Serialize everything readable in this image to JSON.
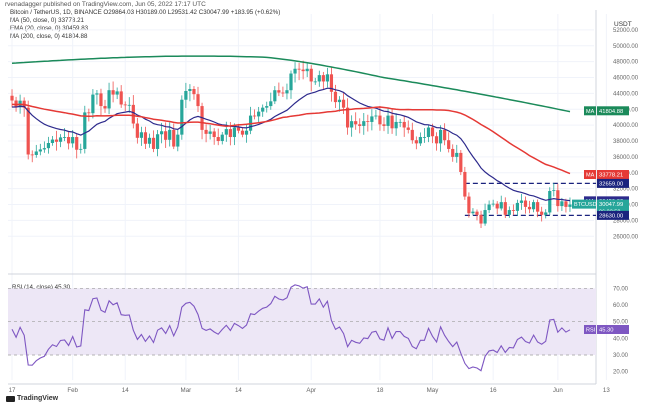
{
  "header": {
    "credit": "rvenadagger published on TradingView.com, Jun 05, 2022 17:17 UTC",
    "symbol_line": "Bitcoin / TetherUS, 1D, BINANCE O29864.03 H30189.00 L29531.42 C30047.99 +183.95 (+0.62%)",
    "ma50_line": "MA (50, close, 0) 33778.21",
    "ema20_line": "EMA (20, close, 0) 30459.83",
    "ma200_line": "MA (200, close, 0) 41804.88"
  },
  "rsi_header": "RSI (14, close) 45.30",
  "logo": "TradingView",
  "currency": "USDT",
  "chart_data": {
    "type": "candlestick",
    "price_axis": {
      "ylim": [
        22000,
        54000
      ],
      "ticks": [
        26000,
        28000,
        30000,
        32000,
        34000,
        36000,
        38000,
        40000,
        42000,
        44000,
        46000,
        48000,
        50000,
        52000
      ]
    },
    "rsi_axis": {
      "ylim": [
        15,
        75
      ],
      "ticks": [
        20,
        30,
        40,
        50,
        60,
        70
      ],
      "bands": [
        30,
        70
      ]
    },
    "x_labels": [
      {
        "label": "17",
        "i": 0
      },
      {
        "label": "Feb",
        "i": 15
      },
      {
        "label": "14",
        "i": 28
      },
      {
        "label": "Mar",
        "i": 43
      },
      {
        "label": "14",
        "i": 56
      },
      {
        "label": "Apr",
        "i": 74
      },
      {
        "label": "18",
        "i": 91
      },
      {
        "label": "May",
        "i": 104
      },
      {
        "label": "16",
        "i": 119
      },
      {
        "label": "Jun",
        "i": 135
      },
      {
        "label": "13",
        "i": 147
      }
    ],
    "closes": [
      43100,
      42250,
      43080,
      42200,
      36300,
      36240,
      36680,
      36940,
      37100,
      37750,
      38180,
      37900,
      38450,
      38500,
      37700,
      38500,
      36900,
      37000,
      41600,
      41500,
      43850,
      44000,
      42400,
      42100,
      44400,
      43850,
      44250,
      42600,
      42500,
      42550,
      40200,
      38400,
      39100,
      37650,
      38400,
      37000,
      38850,
      39230,
      38150,
      39400,
      37300,
      38800,
      43200,
      44300,
      44550,
      43900,
      42400,
      39400,
      38900,
      39200,
      38500,
      38000,
      38800,
      39500,
      38500,
      39700,
      39300,
      38800,
      39300,
      41200,
      41100,
      41700,
      42200,
      42400,
      43000,
      44400,
      44100,
      44000,
      44400,
      46500,
      47100,
      47000,
      46800,
      47100,
      45500,
      45500,
      46300,
      45500,
      46400,
      44200,
      42900,
      43200,
      42200,
      39700,
      40500,
      40100,
      39900,
      40500,
      40400,
      41100,
      41200,
      40100,
      39900,
      41200,
      39600,
      40400,
      40400,
      39700,
      39400,
      38100,
      37700,
      38500,
      38500,
      39700,
      38600,
      37700,
      39400,
      38100,
      37000,
      36000,
      36500,
      34100,
      31000,
      28900,
      29100,
      28700,
      27600,
      29300,
      30000,
      30100,
      29500,
      30300,
      28700,
      29300,
      29200,
      30200,
      30500,
      29700,
      29400,
      30300,
      29100,
      28700,
      29000,
      31700,
      31800,
      29800,
      30400,
      29700,
      30000
    ],
    "series": [
      {
        "name": "MA 50",
        "value": 33778.21,
        "color": "#e53935"
      },
      {
        "name": "EMA 20",
        "value": 30459.83,
        "color": "#2d2a8c"
      },
      {
        "name": "MA 200",
        "value": 41804.88,
        "color": "#1b8a5a"
      }
    ],
    "rsi_last": 45.3,
    "levels": [
      {
        "value": 32659.0,
        "label": "32659.00"
      },
      {
        "value": 28630.0,
        "label": "28630.00"
      }
    ],
    "price_tags": [
      {
        "text": "MA",
        "value": 41804.88,
        "label": "41804.88",
        "color": "#1b8a5a"
      },
      {
        "text": "MA",
        "value": 33778.21,
        "label": "33778.21",
        "color": "#e53935"
      },
      {
        "text": "MA",
        "value": 30459.83,
        "label": "30459.83",
        "color": "#2d2a8c"
      },
      {
        "text": "BTCUSDT",
        "value": 30047.99,
        "label": "30047.99",
        "sub": "06:22:58",
        "color": "#26a69a"
      },
      {
        "text": "RSI",
        "rsi": 45.3,
        "label": "45.30",
        "color": "#7e57c2"
      }
    ]
  },
  "colors": {
    "up": "#26a69a",
    "down": "#ef5350",
    "rsi": "#7e57c2",
    "rsi_band": "#ede7f6",
    "grid": "#f0f3fa"
  }
}
